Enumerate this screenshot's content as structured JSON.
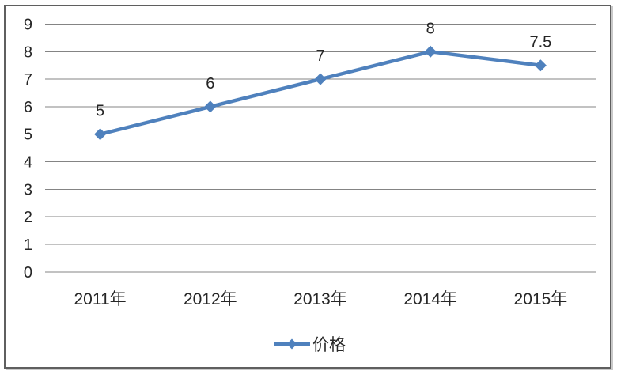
{
  "chart_data": {
    "type": "line",
    "title": "",
    "categories": [
      "2011年",
      "2012年",
      "2013年",
      "2014年",
      "2015年"
    ],
    "series": [
      {
        "name": "价格",
        "values": [
          5,
          6,
          7,
          8,
          7.5
        ],
        "color": "#4F81BD",
        "marker": "diamond"
      }
    ],
    "data_labels": [
      "5",
      "6",
      "7",
      "8",
      "7.5"
    ],
    "xlabel": "",
    "ylabel": "",
    "ylim": [
      0,
      9
    ],
    "ytick_step": 1,
    "yticks": [
      "0",
      "1",
      "2",
      "3",
      "4",
      "5",
      "6",
      "7",
      "8",
      "9"
    ],
    "grid": "horizontal",
    "legend_position": "bottom",
    "legend": {
      "entries": [
        {
          "label": "价格",
          "marker": "diamond",
          "color": "#4F81BD"
        }
      ]
    },
    "colors": {
      "series_blue": "#4F81BD",
      "gridline": "#848484",
      "text": "#262626",
      "frame_border": "#5f5f5f",
      "background": "#ffffff"
    }
  }
}
